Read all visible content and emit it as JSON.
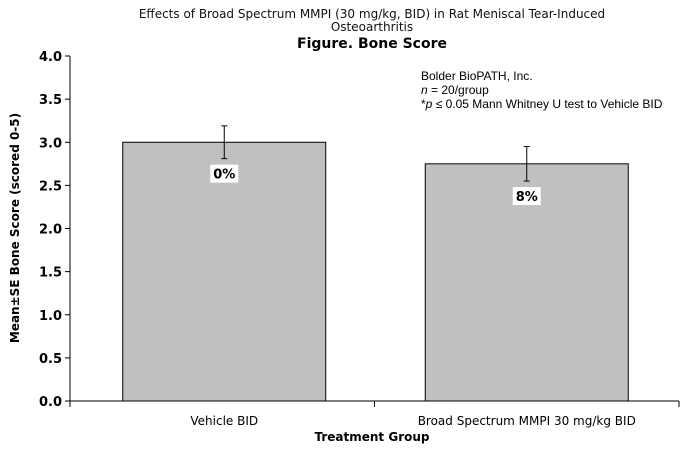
{
  "chart_data": {
    "type": "bar",
    "title_line1": "Effects of Broad Spectrum MMPI (30 mg/kg, BID) in Rat Meniscal Tear-Induced",
    "title_line2": "Osteoarthritis",
    "title": "Figure. Bone Score",
    "xlabel": "Treatment Group",
    "ylabel": "Mean±SE Bone Score (scored 0-5)",
    "ylim": [
      0,
      4
    ],
    "yticks": [
      "0.0",
      "0.5",
      "1.0",
      "1.5",
      "2.0",
      "2.5",
      "3.0",
      "3.5",
      "4.0"
    ],
    "categories": [
      "Vehicle BID",
      "Broad Spectrum MMPI 30 mg/kg BID"
    ],
    "values": [
      3.0,
      2.75
    ],
    "errors": [
      0.19,
      0.2
    ],
    "data_labels": [
      "0%",
      "8%"
    ],
    "bar_color": "#c0c0c0",
    "grid": false,
    "annotation": {
      "line1": "Bolder BioPATH, Inc.",
      "line2_italic": "n",
      "line2_rest": " = 20/group",
      "line3_prefix": "*",
      "line3_italic": "p",
      "line3_rest": " ≤ 0.05 Mann Whitney U test to Vehicle BID"
    }
  }
}
